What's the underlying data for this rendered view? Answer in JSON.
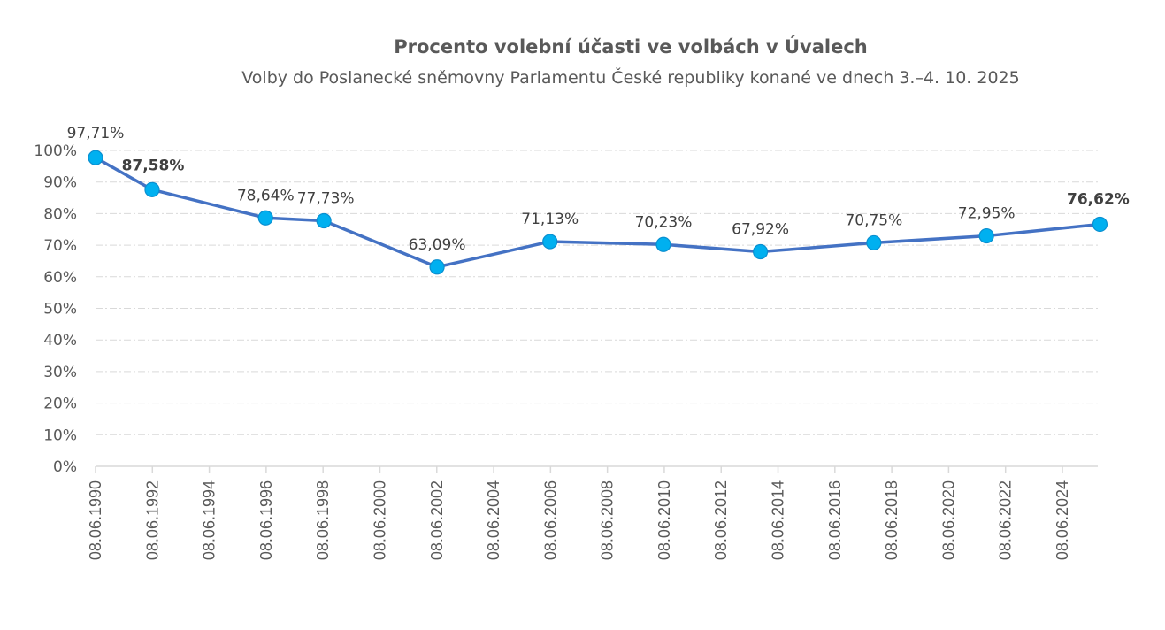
{
  "chart_data": {
    "type": "line",
    "title": "Procento volební účasti ve volbách v Úvalech",
    "subtitle": "Volby do Poslanecké sněmovny Parlamentu České republiky konané ve dnech 3.–4. 10. 2025",
    "xlabel": "",
    "ylabel": "",
    "x_axis": {
      "type": "date",
      "min_year": 1990.44,
      "max_year": 2026.5,
      "tick_years": [
        1990.44,
        1992.44,
        1994.44,
        1996.44,
        1998.44,
        2000.44,
        2002.44,
        2004.44,
        2006.44,
        2008.44,
        2010.44,
        2012.44,
        2014.44,
        2016.44,
        2018.44,
        2020.44,
        2022.44,
        2024.44
      ],
      "tick_labels": [
        "08.06.1990",
        "08.06.1992",
        "08.06.1994",
        "08.06.1996",
        "08.06.1998",
        "08.06.2000",
        "08.06.2002",
        "08.06.2004",
        "08.06.2006",
        "08.06.2008",
        "08.06.2010",
        "08.06.2012",
        "08.06.2014",
        "08.06.2016",
        "08.06.2018",
        "08.06.2020",
        "08.06.2022",
        "08.06.2024"
      ]
    },
    "y_axis": {
      "ylim": [
        0,
        100
      ],
      "ticks": [
        0,
        10,
        20,
        30,
        40,
        50,
        60,
        70,
        80,
        90,
        100
      ],
      "tick_labels": [
        "0%",
        "10%",
        "20%",
        "30%",
        "40%",
        "50%",
        "60%",
        "70%",
        "80%",
        "90%",
        "100%"
      ],
      "grid": true
    },
    "legend": "none",
    "series": [
      {
        "name": "Volební účast",
        "color": "#4472c4",
        "marker_color": "#00b0f0",
        "x": [
          1990.44,
          1992.43,
          1996.42,
          1998.47,
          2002.45,
          2006.42,
          2010.41,
          2013.82,
          2017.81,
          2021.77,
          2025.76
        ],
        "values": [
          97.71,
          87.58,
          78.64,
          77.73,
          63.09,
          71.13,
          70.23,
          67.92,
          70.75,
          72.95,
          76.62
        ],
        "labels": [
          "97,71%",
          "87,58%",
          "78,64%",
          "77,73%",
          "63,09%",
          "71,13%",
          "70,23%",
          "67,92%",
          "70,75%",
          "72,95%",
          "76,62%"
        ],
        "bold_labels": [
          false,
          true,
          false,
          false,
          false,
          false,
          false,
          false,
          false,
          false,
          true
        ]
      }
    ]
  }
}
